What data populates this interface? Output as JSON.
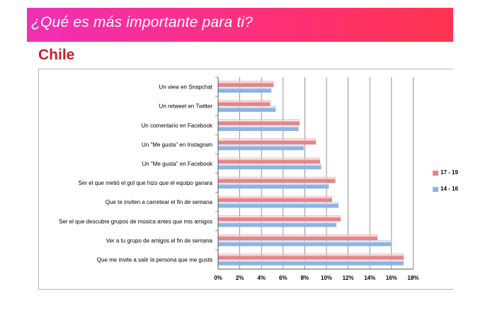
{
  "banner": {
    "title": "¿Qué es más importante para ti?"
  },
  "country": "Chile",
  "colors": {
    "series_red": "#e88486",
    "series_blue": "#8fb3e0"
  },
  "chart_data": {
    "type": "bar",
    "orientation": "horizontal",
    "categories": [
      "Un view en Snapchat",
      "Un retweet en Twitter",
      "Un comentario en Facebook",
      "Un \"Me gusta\" en Instagram",
      "Un \"Me gusta\" en Facebook",
      "Ser el que metió el gol que hizo que el equipo ganara",
      "Que te inviten a carretear el fin de semana",
      "Ser el que descubre grupos de música antes que mis amigos",
      "Ver a tu grupo de amigos el fin de semana",
      "Que me invite a salir la persona que me gusta"
    ],
    "series": [
      {
        "name": "17 - 19",
        "color": "#e88486",
        "values": [
          5.1,
          4.8,
          7.5,
          9.0,
          9.4,
          10.8,
          10.5,
          11.3,
          14.7,
          17.1
        ]
      },
      {
        "name": "14 - 16",
        "color": "#8fb3e0",
        "values": [
          4.9,
          5.3,
          7.4,
          7.9,
          9.5,
          10.2,
          11.1,
          10.9,
          16.0,
          17.1
        ]
      }
    ],
    "xticks": [
      "0%",
      "2%",
      "4%",
      "6%",
      "8%",
      "10%",
      "12%",
      "14%",
      "16%",
      "18%"
    ],
    "xlim": [
      0,
      18
    ],
    "grid": true,
    "legend_position": "right"
  }
}
